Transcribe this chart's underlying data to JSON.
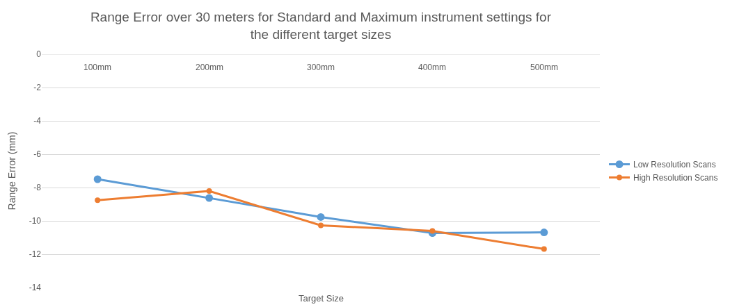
{
  "chart_data": {
    "type": "line",
    "title": "Range Error over 30 meters for Standard and Maximum instrument settings for the different target sizes",
    "xlabel": "Target Size",
    "ylabel": "Range Error (mm)",
    "categories": [
      "100mm",
      "200mm",
      "300mm",
      "400mm",
      "500mm"
    ],
    "series": [
      {
        "name": "Low Resolution Scans",
        "color": "#5b9bd5",
        "values": [
          -7.5,
          -8.63,
          -9.77,
          -10.73,
          -10.69
        ]
      },
      {
        "name": "High Resolution Scans",
        "color": "#ed7d31",
        "values": [
          -8.76,
          -8.21,
          -10.27,
          -10.6,
          -11.69
        ]
      }
    ],
    "ylim": [
      -14,
      0
    ],
    "yticks": [
      -14,
      -12,
      -10,
      -8,
      -6,
      -4,
      -2,
      0
    ],
    "grid": "y",
    "legend": "right",
    "marker": "circle",
    "line_style": "solid"
  }
}
